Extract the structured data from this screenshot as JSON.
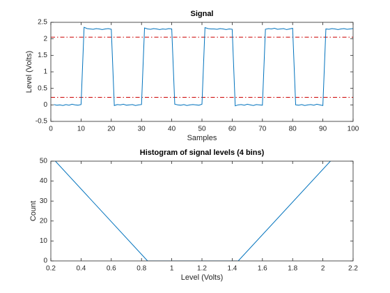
{
  "chart_data": [
    {
      "type": "line",
      "title": "Signal",
      "xlabel": "Samples",
      "ylabel": "Level (Volts)",
      "x": [
        1,
        2,
        3,
        4,
        5,
        6,
        7,
        8,
        9,
        10,
        11,
        12,
        13,
        14,
        15,
        16,
        17,
        18,
        19,
        20,
        21,
        22,
        23,
        24,
        25,
        26,
        27,
        28,
        29,
        30,
        31,
        32,
        33,
        34,
        35,
        36,
        37,
        38,
        39,
        40,
        41,
        42,
        43,
        44,
        45,
        46,
        47,
        48,
        49,
        50,
        51,
        52,
        53,
        54,
        55,
        56,
        57,
        58,
        59,
        60,
        61,
        62,
        63,
        64,
        65,
        66,
        67,
        68,
        69,
        70,
        71,
        72,
        73,
        74,
        75,
        76,
        77,
        78,
        79,
        80,
        81,
        82,
        83,
        84,
        85,
        86,
        87,
        88,
        89,
        90,
        91,
        92,
        93,
        94,
        95,
        96,
        97,
        98,
        99,
        100
      ],
      "series": [
        {
          "name": "signal",
          "color": "#0072bd",
          "values": [
            0.01,
            -0.01,
            0,
            -0.02,
            0.01,
            -0.01,
            0.02,
            0,
            -0.01,
            0.01,
            2.35,
            2.31,
            2.3,
            2.29,
            2.31,
            2.3,
            2.28,
            2.3,
            2.31,
            2.29,
            -0.02,
            0.01,
            0,
            0.02,
            -0.01,
            0,
            0.01,
            -0.02,
            0,
            0.01,
            2.33,
            2.3,
            2.29,
            2.31,
            2.3,
            2.28,
            2.3,
            2.29,
            2.31,
            2.3,
            0.02,
            0,
            -0.01,
            0.01,
            -0.02,
            0,
            0.01,
            0,
            -0.01,
            0.02,
            2.34,
            2.31,
            2.3,
            2.3,
            2.29,
            2.31,
            2.3,
            2.28,
            2.3,
            2.29,
            -0.03,
            0,
            0.01,
            -0.01,
            0.02,
            0,
            -0.02,
            0.01,
            0,
            -0.01,
            2.29,
            2.31,
            2.3,
            2.32,
            2.29,
            2.3,
            2.31,
            2.28,
            2.3,
            2.32,
            0,
            -0.01,
            0.01,
            -0.02,
            0,
            0.01,
            -0.01,
            0.02,
            0,
            -0.02,
            2.3,
            2.29,
            2.31,
            2.3,
            2.28,
            2.3,
            2.31,
            2.29,
            2.3,
            2.31
          ]
        }
      ],
      "reference_lines": [
        {
          "value": 2.05,
          "color": "#cc0000",
          "style": "dash-dot"
        },
        {
          "value": 0.23,
          "color": "#cc0000",
          "style": "dash-dot"
        }
      ],
      "xlim": [
        0,
        100
      ],
      "xticks": [
        0,
        10,
        20,
        30,
        40,
        50,
        60,
        70,
        80,
        90,
        100
      ],
      "ylim": [
        -0.5,
        2.5
      ],
      "yticks": [
        -0.5,
        0,
        0.5,
        1,
        1.5,
        2,
        2.5
      ]
    },
    {
      "type": "line",
      "title": "Histogram of signal levels (4 bins)",
      "xlabel": "Level (Volts)",
      "ylabel": "Count",
      "x": [
        0.23,
        0.84,
        1.44,
        2.05
      ],
      "series": [
        {
          "name": "count",
          "color": "#0072bd",
          "values": [
            50,
            0,
            0,
            50
          ]
        }
      ],
      "xlim": [
        0.2,
        2.2
      ],
      "xticks": [
        0.2,
        0.4,
        0.6,
        0.8,
        1,
        1.2,
        1.4,
        1.6,
        1.8,
        2,
        2.2
      ],
      "ylim": [
        0,
        50
      ],
      "yticks": [
        0,
        10,
        20,
        30,
        40,
        50
      ]
    }
  ]
}
